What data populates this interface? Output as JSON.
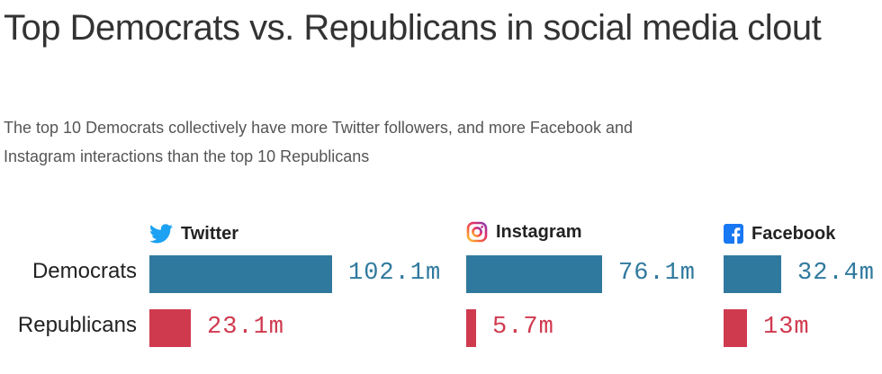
{
  "header": {
    "title": "Top Democrats vs. Republicans in social media clout",
    "subtitle": "The top 10 Democrats collectively have more Twitter followers, and more Facebook and Instagram interactions than the top 10 Republicans"
  },
  "colors": {
    "democrats": "#30799e",
    "republicans": "#d03a4f",
    "twitter": "#1da1f2",
    "facebook": "#1877f2"
  },
  "chart_data": {
    "type": "bar",
    "orientation": "horizontal",
    "title": "Top Democrats vs. Republicans in social media clout",
    "categories": [
      "Democrats",
      "Republicans"
    ],
    "unit": "millions",
    "panels": [
      {
        "name": "Twitter",
        "icon": "twitter-bird-icon",
        "values": [
          102.1,
          23.1
        ],
        "labels": [
          "102.1m",
          "23.1m"
        ]
      },
      {
        "name": "Instagram",
        "icon": "instagram-icon",
        "values": [
          76.1,
          5.7
        ],
        "labels": [
          "76.1m",
          "5.7m"
        ]
      },
      {
        "name": "Facebook",
        "icon": "facebook-icon",
        "values": [
          32.4,
          13
        ],
        "labels": [
          "32.4m",
          "13m"
        ]
      }
    ]
  }
}
